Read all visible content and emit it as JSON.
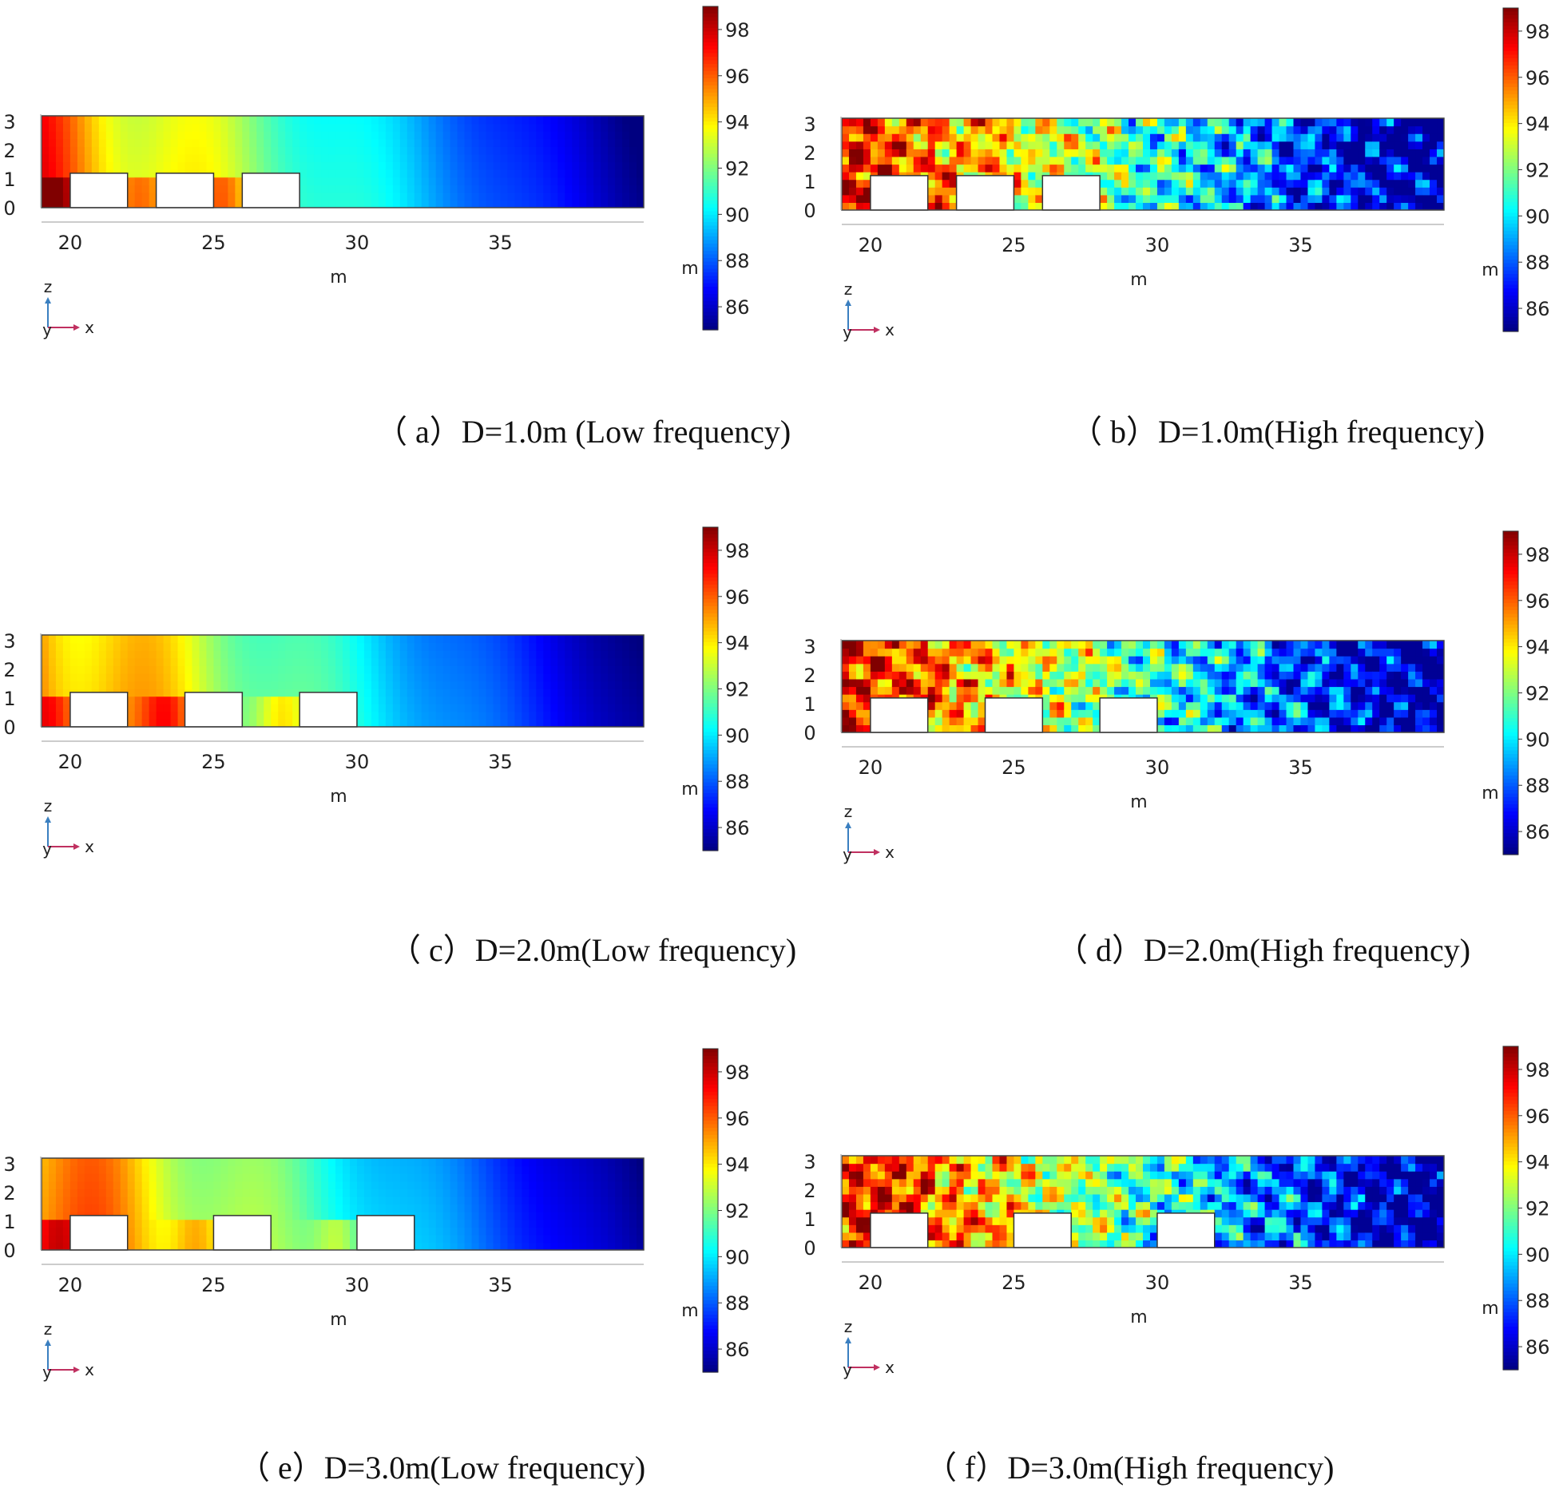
{
  "chart_data": {
    "type": "heatmap",
    "description_units": {
      "axis_unit": "m"
    },
    "x_ticks": [
      20,
      25,
      30,
      35
    ],
    "z_ticks": [
      0,
      1,
      2,
      3
    ],
    "x_range": [
      19,
      40
    ],
    "z_range": [
      0,
      3.2
    ],
    "colorbar": {
      "ticks": [
        86,
        88,
        90,
        92,
        94,
        96,
        98
      ],
      "range": [
        85,
        99
      ],
      "unit": "m"
    },
    "axis_triad": {
      "up": "z",
      "right": "x",
      "origin": "y"
    },
    "panels": [
      {
        "id": "a",
        "caption": "（ a）D=1.0m (Low frequency)",
        "spacing_m": 1.0,
        "frequency": "low",
        "barrier_starts": [
          20,
          23,
          26
        ]
      },
      {
        "id": "b",
        "caption": "（ b）D=1.0m(High frequency)",
        "spacing_m": 1.0,
        "frequency": "high",
        "barrier_starts": [
          20,
          23,
          26
        ]
      },
      {
        "id": "c",
        "caption": "（ c）D=2.0m(Low frequency)",
        "spacing_m": 2.0,
        "frequency": "low",
        "barrier_starts": [
          20,
          24,
          28
        ]
      },
      {
        "id": "d",
        "caption": "（ d）D=2.0m(High frequency)",
        "spacing_m": 2.0,
        "frequency": "high",
        "barrier_starts": [
          20,
          24,
          28
        ]
      },
      {
        "id": "e",
        "caption": "（ e）D=3.0m(Low frequency)",
        "spacing_m": 3.0,
        "frequency": "low",
        "barrier_starts": [
          20,
          25,
          30
        ]
      },
      {
        "id": "f",
        "caption": "（ f）D=3.0m(High frequency)",
        "spacing_m": 3.0,
        "frequency": "high",
        "barrier_starts": [
          20,
          25,
          30
        ]
      }
    ],
    "barrier_width_m": 2.0,
    "barrier_height_m": 1.2
  }
}
